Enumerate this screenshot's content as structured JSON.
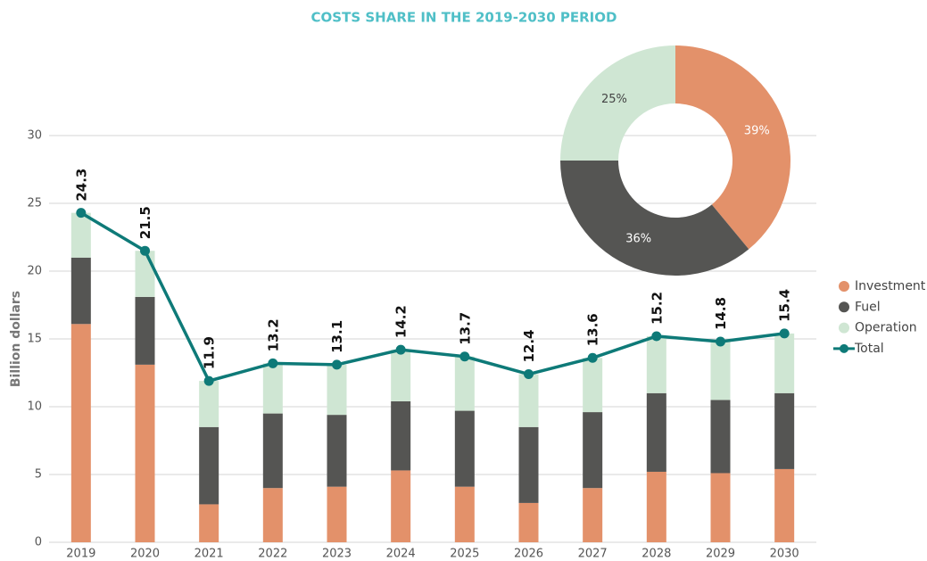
{
  "chart_data": [
    {
      "type": "bar",
      "stacked": true,
      "title": "COSTS SHARE IN THE 2019-2030 PERIOD",
      "y_label": "Billion dollars",
      "categories": [
        "2019",
        "2020",
        "2021",
        "2022",
        "2023",
        "2024",
        "2025",
        "2026",
        "2027",
        "2028",
        "2029",
        "2030"
      ],
      "series": [
        {
          "name": "Investment",
          "type": "bar",
          "color": "#e3916a",
          "values": [
            16.1,
            13.1,
            2.8,
            4.0,
            4.1,
            5.3,
            4.1,
            2.9,
            4.0,
            5.2,
            5.1,
            5.4
          ]
        },
        {
          "name": "Fuel",
          "type": "bar",
          "color": "#555553",
          "values": [
            4.9,
            5.0,
            5.7,
            5.5,
            5.3,
            5.1,
            5.6,
            5.6,
            5.6,
            5.8,
            5.4,
            5.6
          ]
        },
        {
          "name": "Operation",
          "type": "bar",
          "color": "#cfe6d3",
          "values": [
            3.3,
            3.4,
            3.4,
            3.7,
            3.7,
            3.8,
            4.0,
            3.9,
            4.0,
            4.2,
            4.3,
            4.4
          ]
        },
        {
          "name": "Total",
          "type": "line",
          "color": "#0e7a78",
          "values": [
            24.3,
            21.5,
            11.9,
            13.2,
            13.1,
            14.2,
            13.7,
            12.4,
            13.6,
            15.2,
            14.8,
            15.4
          ]
        }
      ],
      "ylim": [
        0,
        30
      ],
      "yticks": [
        0,
        5,
        10,
        15,
        20,
        25,
        30
      ],
      "grid": true,
      "legend": "right"
    },
    {
      "type": "donut",
      "values": [
        39,
        36,
        25
      ],
      "value_labels": [
        "39%",
        "36%",
        "25%"
      ],
      "colors": [
        "#e3916a",
        "#555553",
        "#cfe6d3"
      ]
    }
  ]
}
